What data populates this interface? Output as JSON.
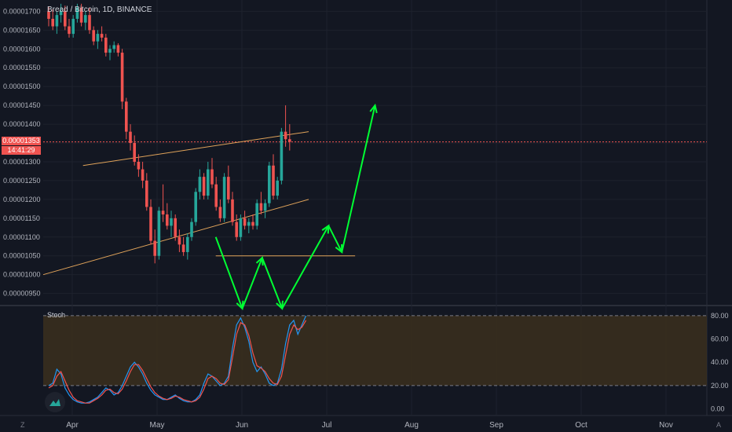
{
  "title": "Bread / Bitcoin, 1D, BINANCE",
  "current_price": "0.00001353",
  "countdown": "14:41:29",
  "stoch_label": "Stoch",
  "corner_left": "Z",
  "corner_right": "A",
  "colors": {
    "background": "#131722",
    "grid": "#1e222d",
    "up": "#26a69a",
    "down": "#ef5350",
    "trendline": "#e0a35a",
    "arrow": "#00ff33",
    "stoch_k": "#2196f3",
    "stoch_d": "#ef5350",
    "stoch_band": "#3b2f1d"
  },
  "chart_data": [
    {
      "type": "candlestick",
      "x_axis": {
        "tick_labels": [
          "Apr",
          "May",
          "Jun",
          "Jul",
          "Aug",
          "Sep",
          "Oct",
          "Nov"
        ]
      },
      "y_axis": {
        "tick_labels": [
          "0.00001700",
          "0.00001650",
          "0.00001600",
          "0.00001550",
          "0.00001500",
          "0.00001450",
          "0.00001400",
          "0.00001350",
          "0.00001300",
          "0.00001250",
          "0.00001200",
          "0.00001150",
          "0.00001100",
          "0.00001050",
          "0.00001000",
          "0.00000950"
        ],
        "range": [
          9.2e-06,
          1.73e-05
        ]
      },
      "current_price": 1.353e-05,
      "candles_ohlc_1e-8": [
        [
          1700,
          1712,
          1660,
          1680
        ],
        [
          1680,
          1705,
          1650,
          1660
        ],
        [
          1660,
          1700,
          1640,
          1690
        ],
        [
          1690,
          1720,
          1670,
          1700
        ],
        [
          1700,
          1715,
          1650,
          1660
        ],
        [
          1660,
          1680,
          1630,
          1640
        ],
        [
          1640,
          1690,
          1630,
          1680
        ],
        [
          1680,
          1720,
          1670,
          1710
        ],
        [
          1710,
          1720,
          1660,
          1670
        ],
        [
          1670,
          1700,
          1650,
          1690
        ],
        [
          1690,
          1710,
          1640,
          1650
        ],
        [
          1650,
          1660,
          1610,
          1620
        ],
        [
          1620,
          1650,
          1600,
          1640
        ],
        [
          1640,
          1660,
          1620,
          1630
        ],
        [
          1630,
          1640,
          1580,
          1590
        ],
        [
          1590,
          1610,
          1570,
          1600
        ],
        [
          1600,
          1620,
          1590,
          1610
        ],
        [
          1610,
          1615,
          1580,
          1590
        ],
        [
          1590,
          1600,
          1440,
          1460
        ],
        [
          1460,
          1470,
          1360,
          1380
        ],
        [
          1380,
          1400,
          1330,
          1350
        ],
        [
          1350,
          1370,
          1290,
          1300
        ],
        [
          1300,
          1320,
          1260,
          1280
        ],
        [
          1280,
          1300,
          1230,
          1250
        ],
        [
          1250,
          1270,
          1170,
          1180
        ],
        [
          1180,
          1200,
          1080,
          1090
        ],
        [
          1090,
          1120,
          1030,
          1050
        ],
        [
          1050,
          1180,
          1040,
          1170
        ],
        [
          1170,
          1240,
          1140,
          1160
        ],
        [
          1160,
          1190,
          1120,
          1130
        ],
        [
          1130,
          1170,
          1100,
          1150
        ],
        [
          1150,
          1160,
          1090,
          1100
        ],
        [
          1100,
          1120,
          1060,
          1080
        ],
        [
          1080,
          1100,
          1050,
          1060
        ],
        [
          1060,
          1110,
          1040,
          1100
        ],
        [
          1100,
          1150,
          1090,
          1140
        ],
        [
          1140,
          1230,
          1130,
          1220
        ],
        [
          1220,
          1280,
          1200,
          1260
        ],
        [
          1260,
          1270,
          1200,
          1210
        ],
        [
          1210,
          1300,
          1200,
          1280
        ],
        [
          1280,
          1310,
          1230,
          1240
        ],
        [
          1240,
          1260,
          1170,
          1180
        ],
        [
          1180,
          1200,
          1140,
          1150
        ],
        [
          1150,
          1270,
          1140,
          1260
        ],
        [
          1260,
          1290,
          1190,
          1200
        ],
        [
          1200,
          1220,
          1130,
          1140
        ],
        [
          1140,
          1160,
          1090,
          1100
        ],
        [
          1100,
          1160,
          1090,
          1150
        ],
        [
          1150,
          1170,
          1120,
          1130
        ],
        [
          1130,
          1150,
          1110,
          1140
        ],
        [
          1140,
          1160,
          1120,
          1130
        ],
        [
          1130,
          1200,
          1120,
          1190
        ],
        [
          1190,
          1220,
          1160,
          1170
        ],
        [
          1170,
          1200,
          1150,
          1190
        ],
        [
          1190,
          1300,
          1180,
          1290
        ],
        [
          1290,
          1320,
          1200,
          1210
        ],
        [
          1210,
          1260,
          1200,
          1250
        ],
        [
          1250,
          1390,
          1240,
          1380
        ],
        [
          1380,
          1450,
          1340,
          1360
        ],
        [
          1360,
          1400,
          1330,
          1353
        ]
      ],
      "trendlines": [
        {
          "from": [
            0.0,
            1e-05
          ],
          "to": [
            0.4,
            1.2e-05
          ]
        },
        {
          "from": [
            0.06,
            1.29e-05
          ],
          "to": [
            0.4,
            1.38e-05
          ]
        },
        {
          "from": [
            0.26,
            1.05e-05
          ],
          "to": [
            0.47,
            1.05e-05
          ]
        }
      ],
      "projection_arrow_path_1e-8": [
        [
          0.26,
          1100
        ],
        [
          0.3,
          910
        ],
        [
          0.33,
          1045
        ],
        [
          0.36,
          910
        ],
        [
          0.43,
          1130
        ],
        [
          0.45,
          1060
        ],
        [
          0.5,
          1450
        ]
      ]
    },
    {
      "type": "line",
      "title": "Stoch",
      "y_axis": {
        "tick_labels": [
          "80.00",
          "60.00",
          "40.00",
          "20.00",
          "0.00"
        ],
        "range": [
          -5,
          88
        ]
      },
      "band": [
        20,
        80
      ],
      "series": [
        {
          "values": [
            20,
            22,
            34,
            30,
            18,
            12,
            8,
            6,
            5,
            5,
            6,
            8,
            10,
            14,
            18,
            16,
            12,
            14,
            20,
            28,
            36,
            40,
            36,
            30,
            22,
            16,
            12,
            10,
            8,
            8,
            10,
            12,
            9,
            7,
            6,
            6,
            8,
            12,
            22,
            30,
            28,
            24,
            20,
            22,
            28,
            52,
            72,
            78,
            70,
            58,
            40,
            32,
            36,
            30,
            22,
            20,
            22,
            34,
            56,
            72,
            76,
            64,
            72,
            80
          ]
        },
        {
          "values": [
            18,
            20,
            28,
            32,
            24,
            16,
            10,
            7,
            6,
            5,
            5,
            7,
            9,
            12,
            16,
            17,
            14,
            13,
            17,
            24,
            32,
            38,
            38,
            33,
            26,
            19,
            14,
            11,
            9,
            8,
            9,
            11,
            10,
            8,
            7,
            6,
            7,
            10,
            17,
            26,
            28,
            26,
            22,
            21,
            25,
            44,
            64,
            74,
            72,
            63,
            48,
            37,
            35,
            32,
            26,
            22,
            21,
            28,
            46,
            64,
            72,
            68,
            70,
            76
          ]
        }
      ]
    }
  ]
}
